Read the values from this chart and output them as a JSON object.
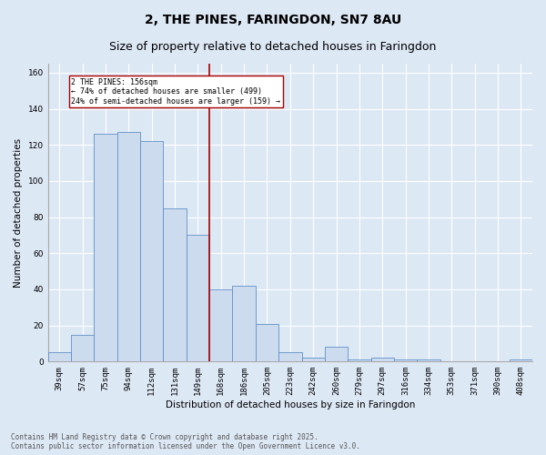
{
  "title": "2, THE PINES, FARINGDON, SN7 8AU",
  "subtitle": "Size of property relative to detached houses in Faringdon",
  "xlabel": "Distribution of detached houses by size in Faringdon",
  "ylabel": "Number of detached properties",
  "categories": [
    "39sqm",
    "57sqm",
    "75sqm",
    "94sqm",
    "112sqm",
    "131sqm",
    "149sqm",
    "168sqm",
    "186sqm",
    "205sqm",
    "223sqm",
    "242sqm",
    "260sqm",
    "279sqm",
    "297sqm",
    "316sqm",
    "334sqm",
    "353sqm",
    "371sqm",
    "390sqm",
    "408sqm"
  ],
  "values": [
    5,
    15,
    126,
    127,
    122,
    85,
    70,
    40,
    42,
    21,
    5,
    2,
    8,
    1,
    2,
    1,
    1,
    0,
    0,
    0,
    1
  ],
  "bar_color": "#ccdcee",
  "bar_edge_color": "#6090c8",
  "vline_pos": 6.5,
  "vline_label": "2 THE PINES: 156sqm",
  "vline_color": "#aa0000",
  "ann_line1": "2 THE PINES: 156sqm",
  "ann_line2": "← 74% of detached houses are smaller (499)",
  "ann_line3": "24% of semi-detached houses are larger (159) →",
  "ylim": [
    0,
    165
  ],
  "yticks": [
    0,
    20,
    40,
    60,
    80,
    100,
    120,
    140,
    160
  ],
  "bg_color": "#dde8f5",
  "footer": "Contains HM Land Registry data © Crown copyright and database right 2025.\nContains public sector information licensed under the Open Government Licence v3.0.",
  "title_fontsize": 10,
  "subtitle_fontsize": 9,
  "axis_label_fontsize": 7.5,
  "tick_fontsize": 6.5,
  "footer_fontsize": 5.5
}
